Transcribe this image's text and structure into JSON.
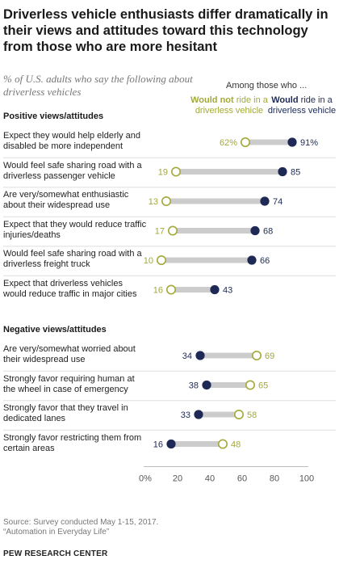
{
  "title": "Driverless vehicle enthusiasts differ dramatically in their views and attitudes toward this technology from those who are more hesitant",
  "subtitle": "% of U.S. adults who say the following about driverless vehicles",
  "legend": {
    "heading": "Among those who ...",
    "not_bold": "Would not",
    "not_rest": " ride in a driverless vehicle",
    "would_bold": "Would",
    "would_rest": " ride in a driverless vehicle"
  },
  "colors": {
    "would_not": "#a3a83a",
    "would": "#1e2a55",
    "connector": "#cccccc",
    "divider": "#dddddd"
  },
  "source_line1": "Source: Survey conducted May 1-15, 2017.",
  "source_line2": "“Automation in Everyday Life”",
  "brand": "PEW RESEARCH CENTER",
  "chart_data": {
    "type": "dot",
    "series": [
      {
        "name": "Would not ride in a driverless vehicle",
        "key": "would_not"
      },
      {
        "name": "Would ride in a driverless vehicle",
        "key": "would"
      }
    ],
    "xlim": [
      0,
      100
    ],
    "xticks": [
      "0%",
      "20",
      "40",
      "60",
      "80",
      "100"
    ],
    "sections": [
      {
        "title": "Positive views/attitudes",
        "rows": [
          {
            "label": "Expect they would help elderly and disabled be more independent",
            "would_not": 62,
            "would": 91,
            "not_text": "62%",
            "would_text": "91%"
          },
          {
            "label": "Would feel safe sharing road with a driverless passenger vehicle",
            "would_not": 19,
            "would": 85,
            "not_text": "19",
            "would_text": "85"
          },
          {
            "label": "Are very/somewhat enthusiastic about their widespread use",
            "would_not": 13,
            "would": 74,
            "not_text": "13",
            "would_text": "74"
          },
          {
            "label": "Expect that they would reduce traffic injuries/deaths",
            "would_not": 17,
            "would": 68,
            "not_text": "17",
            "would_text": "68"
          },
          {
            "label": "Would feel safe sharing road with a driverless freight truck",
            "would_not": 10,
            "would": 66,
            "not_text": "10",
            "would_text": "66"
          },
          {
            "label": "Expect that driverless vehicles would reduce traffic in major cities",
            "would_not": 16,
            "would": 43,
            "not_text": "16",
            "would_text": "43"
          }
        ]
      },
      {
        "title": "Negative views/attitudes",
        "rows": [
          {
            "label": "Are very/somewhat worried about their widespread use",
            "would_not": 69,
            "would": 34,
            "not_text": "69",
            "would_text": "34"
          },
          {
            "label": "Strongly favor requiring human at the wheel in case of emergency",
            "would_not": 65,
            "would": 38,
            "not_text": "65",
            "would_text": "38"
          },
          {
            "label": "Strongly favor that they travel in dedicated lanes",
            "would_not": 58,
            "would": 33,
            "not_text": "58",
            "would_text": "33"
          },
          {
            "label": "Strongly favor restricting them from certain areas",
            "would_not": 48,
            "would": 16,
            "not_text": "48",
            "would_text": "16"
          }
        ]
      }
    ]
  }
}
